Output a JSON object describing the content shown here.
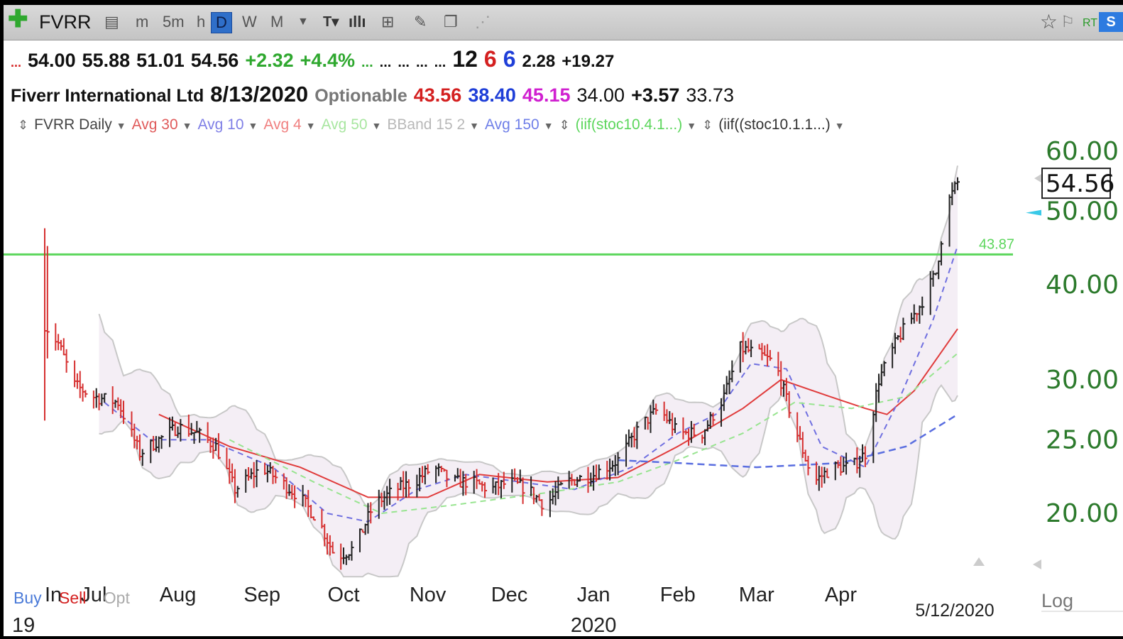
{
  "toolbar": {
    "symbol": "FVRR",
    "intervals": [
      "m",
      "5m",
      "h",
      "D",
      "W",
      "M"
    ],
    "active_interval": "D",
    "rt_label": "RT",
    "s_label": "S"
  },
  "quote_row1": {
    "open": "54.00",
    "high": "55.88",
    "low": "51.01",
    "close": "54.56",
    "change": "+2.32",
    "change_pct": "+4.4%",
    "dots": [
      "...",
      "...",
      "...",
      "...",
      "...",
      "..."
    ],
    "n1": "12",
    "n2": "6",
    "n3": "6",
    "v1": "2.28",
    "v2": "+19.27"
  },
  "quote_row2": {
    "name": "Fiverr International Ltd",
    "date": "8/13/2020",
    "optionable": "Optionable",
    "v_red": "43.56",
    "v_blue": "38.40",
    "v_magenta": "45.15",
    "v_plain": "34.00",
    "v_bold": "+3.57",
    "v_last": "33.73"
  },
  "legend": [
    {
      "label": "FVRR Daily",
      "color": "#444444"
    },
    {
      "label": "Avg 30",
      "color": "#e05a5a"
    },
    {
      "label": "Avg 10",
      "color": "#7f7fe6"
    },
    {
      "label": "Avg 4",
      "color": "#f08080"
    },
    {
      "label": "Avg 50",
      "color": "#a8e6a0"
    },
    {
      "label": "BBand 15 2",
      "color": "#b8b8b8"
    },
    {
      "label": "Avg 150",
      "color": "#6f7fe8"
    },
    {
      "label": "(iif(stoc10.4.1...)",
      "color": "#5cd65c"
    },
    {
      "label": "(iif((stoc10.1.1...)",
      "color": "#333333"
    }
  ],
  "bottom": {
    "buy": "Buy",
    "sell": "Sell",
    "opt": "Opt",
    "log": "Log"
  },
  "colors": {
    "avg30": "#e03c3c",
    "avg10": "#7070e0",
    "avg4": "#f09090",
    "avg50": "#98e490",
    "avg150": "#5a6ee0",
    "bband": "#c8c8c8",
    "hline": "#5cd65c",
    "axis_text": "#2c7a2c"
  },
  "chart_data": {
    "type": "ohlc",
    "title": "FVRR Daily",
    "y_scale": "log",
    "ylim": [
      16,
      66
    ],
    "y_ticks": [
      "60.00",
      "50.00",
      "40.00",
      "30.00",
      "25.00",
      "20.00"
    ],
    "y_tick_values": [
      60,
      50,
      40,
      30,
      25,
      20
    ],
    "last_price_label": "54.56",
    "last_price": 54.56,
    "horizontal_line": {
      "value": 43.87,
      "label": "43.87"
    },
    "x_labels": [
      "Jun",
      "Jul",
      "Aug",
      "Sep",
      "Oct",
      "Nov",
      "Dec",
      "Jan",
      "Feb",
      "Mar",
      "Apr"
    ],
    "x_labels_printed": [
      "In",
      "Jul",
      "Aug",
      "Sep",
      "Oct",
      "Nov",
      "Dec",
      "Jan",
      "Feb",
      "Mar",
      "Apr"
    ],
    "x_label_dates": [
      "2019-06-13",
      "2019-07-01",
      "2019-08-01",
      "2019-09-01",
      "2019-10-01",
      "2019-11-01",
      "2019-12-01",
      "2020-01-01",
      "2020-02-01",
      "2020-03-01",
      "2020-04-01"
    ],
    "year_labels": [
      "19",
      "2020"
    ],
    "year_label_dates": [
      "2019-06-18",
      "2020-01-01"
    ],
    "date_marker": "5/12/2020",
    "x_range": [
      "2019-06-13",
      "2020-05-14"
    ],
    "close_path": [
      [
        "2019-06-13",
        35.5
      ],
      [
        "2019-06-18",
        33.5
      ],
      [
        "2019-06-24",
        29.5
      ],
      [
        "2019-07-01",
        28.5
      ],
      [
        "2019-07-10",
        28.0
      ],
      [
        "2019-07-18",
        24.0
      ],
      [
        "2019-07-25",
        25.0
      ],
      [
        "2019-08-01",
        26.0
      ],
      [
        "2019-08-08",
        25.5
      ],
      [
        "2019-08-15",
        24.5
      ],
      [
        "2019-08-22",
        21.5
      ],
      [
        "2019-09-01",
        23.0
      ],
      [
        "2019-09-08",
        22.0
      ],
      [
        "2019-09-15",
        21.0
      ],
      [
        "2019-09-22",
        19.5
      ],
      [
        "2019-09-28",
        17.5
      ],
      [
        "2019-10-05",
        18.0
      ],
      [
        "2019-10-12",
        20.5
      ],
      [
        "2019-10-20",
        21.5
      ],
      [
        "2019-10-27",
        22.0
      ],
      [
        "2019-11-03",
        23.0
      ],
      [
        "2019-11-10",
        22.0
      ],
      [
        "2019-11-17",
        22.0
      ],
      [
        "2019-11-24",
        21.5
      ],
      [
        "2019-12-01",
        22.0
      ],
      [
        "2019-12-08",
        21.5
      ],
      [
        "2019-12-14",
        20.5
      ],
      [
        "2019-12-22",
        22.0
      ],
      [
        "2020-01-01",
        22.5
      ],
      [
        "2020-01-10",
        23.5
      ],
      [
        "2020-01-18",
        26.0
      ],
      [
        "2020-01-25",
        27.5
      ],
      [
        "2020-02-01",
        25.5
      ],
      [
        "2020-02-10",
        25.5
      ],
      [
        "2020-02-18",
        28.5
      ],
      [
        "2020-02-24",
        33.0
      ],
      [
        "2020-03-01",
        32.5
      ],
      [
        "2020-03-08",
        31.5
      ],
      [
        "2020-03-15",
        26.0
      ],
      [
        "2020-03-22",
        22.0
      ],
      [
        "2020-03-29",
        23.0
      ],
      [
        "2020-04-05",
        23.0
      ],
      [
        "2020-04-10",
        24.0
      ],
      [
        "2020-04-15",
        30.0
      ],
      [
        "2020-04-22",
        34.0
      ],
      [
        "2020-04-30",
        37.5
      ],
      [
        "2020-05-06",
        41.5
      ],
      [
        "2020-05-10",
        51.0
      ],
      [
        "2020-05-14",
        54.56
      ]
    ],
    "moving_averages": [
      {
        "name": "Avg 30",
        "points": [
          [
            "2019-07-25",
            27.0
          ],
          [
            "2019-08-20",
            24.5
          ],
          [
            "2019-09-15",
            23.0
          ],
          [
            "2019-10-10",
            21.0
          ],
          [
            "2019-11-01",
            21.0
          ],
          [
            "2019-11-20",
            22.5
          ],
          [
            "2019-12-15",
            22.0
          ],
          [
            "2020-01-10",
            22.3
          ],
          [
            "2020-02-01",
            24.5
          ],
          [
            "2020-02-25",
            27.5
          ],
          [
            "2020-03-10",
            30.0
          ],
          [
            "2020-03-28",
            28.5
          ],
          [
            "2020-04-10",
            27.5
          ],
          [
            "2020-04-18",
            27.0
          ],
          [
            "2020-04-28",
            29.0
          ],
          [
            "2020-05-14",
            35.0
          ]
        ]
      },
      {
        "name": "Avg 10",
        "points": [
          [
            "2019-07-05",
            28.0
          ],
          [
            "2019-07-22",
            25.0
          ],
          [
            "2019-08-12",
            25.0
          ],
          [
            "2019-09-05",
            23.0
          ],
          [
            "2019-09-25",
            20.0
          ],
          [
            "2019-10-10",
            19.5
          ],
          [
            "2019-10-28",
            21.5
          ],
          [
            "2019-11-15",
            22.5
          ],
          [
            "2019-12-05",
            22.0
          ],
          [
            "2019-12-25",
            21.5
          ],
          [
            "2020-01-15",
            23.0
          ],
          [
            "2020-02-01",
            25.5
          ],
          [
            "2020-02-15",
            27.0
          ],
          [
            "2020-02-28",
            31.5
          ],
          [
            "2020-03-12",
            31.0
          ],
          [
            "2020-03-25",
            24.5
          ],
          [
            "2020-04-10",
            23.0
          ],
          [
            "2020-04-22",
            28.0
          ],
          [
            "2020-05-05",
            36.0
          ],
          [
            "2020-05-14",
            45.0
          ]
        ]
      },
      {
        "name": "Avg 50",
        "points": [
          [
            "2019-08-20",
            25.0
          ],
          [
            "2019-09-20",
            22.0
          ],
          [
            "2019-10-15",
            20.0
          ],
          [
            "2019-11-10",
            20.5
          ],
          [
            "2019-12-15",
            21.3
          ],
          [
            "2020-01-10",
            22.0
          ],
          [
            "2020-02-01",
            23.5
          ],
          [
            "2020-02-25",
            25.5
          ],
          [
            "2020-03-15",
            28.0
          ],
          [
            "2020-04-05",
            27.5
          ],
          [
            "2020-04-25",
            28.5
          ],
          [
            "2020-05-14",
            32.5
          ]
        ]
      },
      {
        "name": "Avg 150",
        "points": [
          [
            "2020-01-10",
            23.5
          ],
          [
            "2020-02-01",
            23.3
          ],
          [
            "2020-03-01",
            23.0
          ],
          [
            "2020-04-01",
            23.3
          ],
          [
            "2020-04-25",
            24.5
          ],
          [
            "2020-05-14",
            27.0
          ]
        ]
      }
    ]
  }
}
